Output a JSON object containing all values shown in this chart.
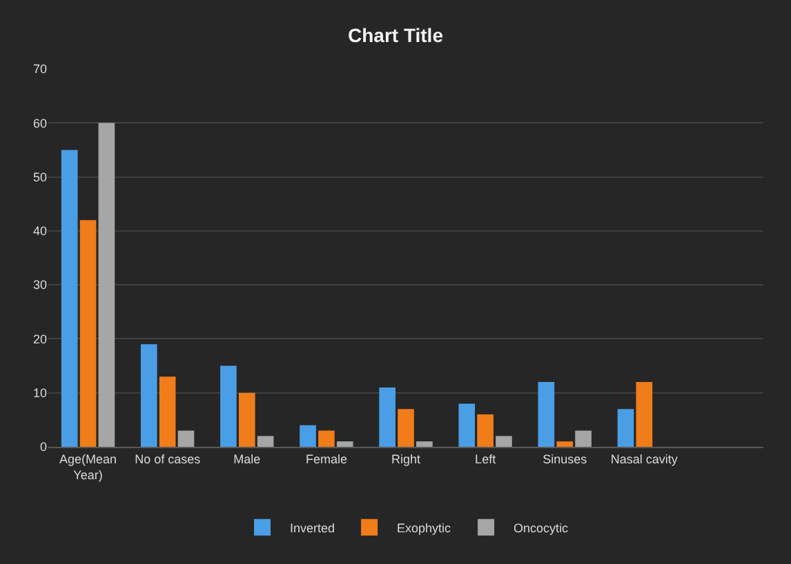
{
  "chart_data": {
    "type": "bar",
    "title": "Chart Title",
    "categories": [
      "Age(Mean Year)",
      "No of cases",
      "Male",
      "Female",
      "Right",
      "Left",
      "Sinuses",
      "Nasal cavity",
      null
    ],
    "series": [
      {
        "name": "Inverted",
        "color": "#4a9ee6",
        "values": [
          55,
          19,
          15,
          4,
          11,
          8,
          12,
          7,
          null
        ]
      },
      {
        "name": "Exophytic",
        "color": "#f07d1a",
        "values": [
          42,
          13,
          10,
          3,
          7,
          6,
          1,
          12,
          null
        ]
      },
      {
        "name": "Oncocytic",
        "color": "#a6a6a6",
        "values": [
          60,
          3,
          2,
          1,
          1,
          2,
          3,
          null,
          null
        ]
      }
    ],
    "ylim": [
      0,
      70
    ],
    "yticks": [
      0,
      10,
      20,
      30,
      40,
      50,
      60,
      70
    ],
    "grid": "y",
    "legend": "bottom"
  }
}
